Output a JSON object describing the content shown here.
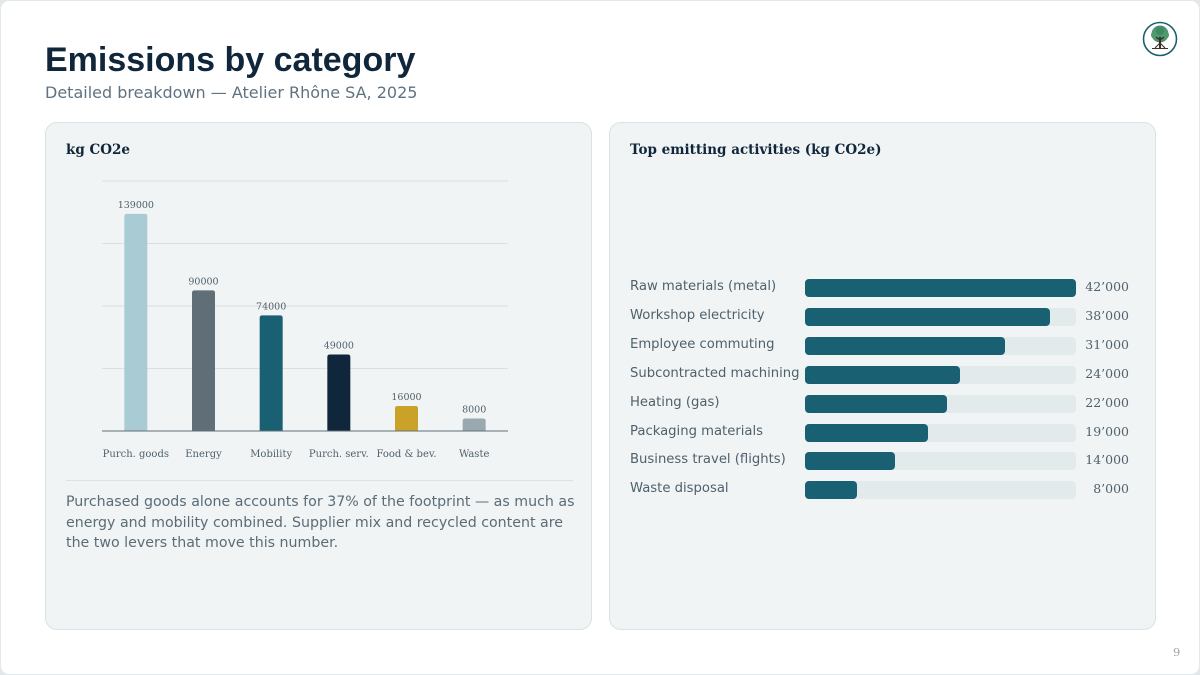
{
  "slide": {
    "title": "Emissions by category",
    "subtitle": "Detailed breakdown — Atelier Rhône SA, 2025",
    "page_number": "9",
    "logo_icon": "tree-icon"
  },
  "left_panel": {
    "title": "kg CO2e",
    "note": "Purchased goods alone accounts for 37% of the footprint — as much as energy and mobility combined. Supplier mix and recycled content are the two levers that move this number."
  },
  "chart_data": {
    "type": "bar",
    "title": "kg CO2e",
    "categories": [
      "Purch. goods",
      "Energy",
      "Mobility",
      "Purch. serv.",
      "Food & bev.",
      "Waste"
    ],
    "values": [
      139000,
      90000,
      74000,
      49000,
      16000,
      8000
    ],
    "value_labels": [
      "139000",
      "90000",
      "74000",
      "49000",
      "16000",
      "8000"
    ],
    "colors": [
      "#a9cbd4",
      "#5f6e77",
      "#1a6073",
      "#10263a",
      "#c9a227",
      "#9aa9af"
    ],
    "ylim": [
      0,
      160000
    ],
    "grid": true,
    "legend": "none"
  },
  "right_panel": {
    "title": "Top emitting activities (kg CO2e)",
    "max_value": 42000,
    "bar_color": "#1a6073",
    "activities": [
      {
        "label": "Raw materials (metal)",
        "value": 42000,
        "display": "42’000"
      },
      {
        "label": "Workshop electricity",
        "value": 38000,
        "display": "38’000"
      },
      {
        "label": "Employee commuting",
        "value": 31000,
        "display": "31’000"
      },
      {
        "label": "Subcontracted machining",
        "value": 24000,
        "display": "24’000"
      },
      {
        "label": "Heating (gas)",
        "value": 22000,
        "display": "22’000"
      },
      {
        "label": "Packaging materials",
        "value": 19000,
        "display": "19’000"
      },
      {
        "label": "Business travel (flights)",
        "value": 14000,
        "display": "14’000"
      },
      {
        "label": "Waste disposal",
        "value": 8000,
        "display": "8’000"
      }
    ]
  }
}
